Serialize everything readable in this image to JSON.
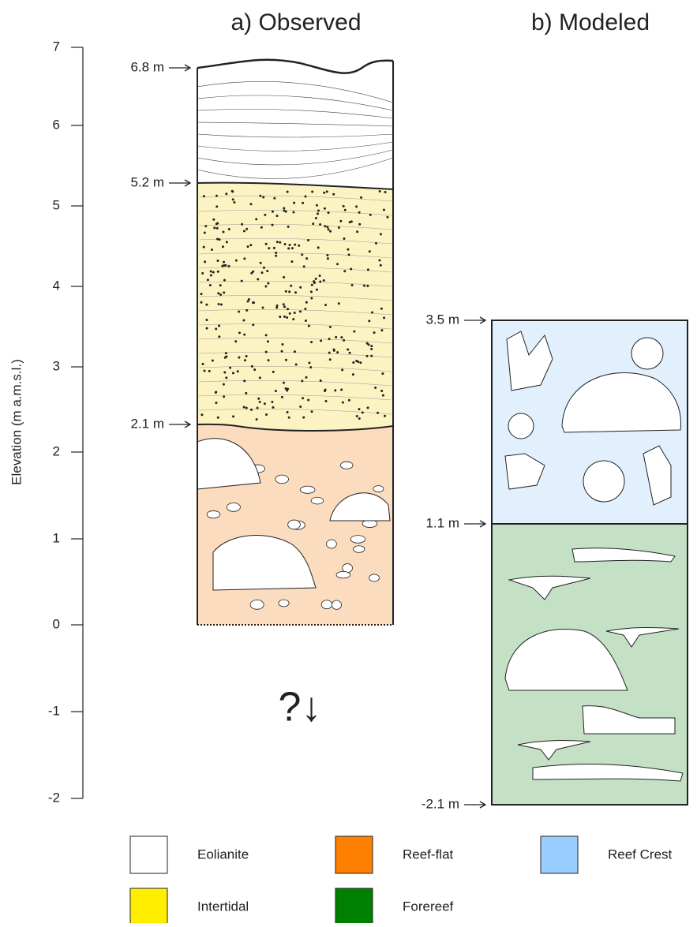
{
  "titles": {
    "observed": "a) Observed",
    "modeled": "b) Modeled"
  },
  "axis": {
    "label": "Elevation (m a.m.s.l.)",
    "ticks": [
      "7",
      "6",
      "5",
      "4",
      "3",
      "2",
      "1",
      "0",
      "-1",
      "-2"
    ]
  },
  "observed": {
    "boundaries": [
      "6.8 m",
      "5.2 m",
      "2.1 m"
    ],
    "unknown": "?↓"
  },
  "modeled": {
    "boundaries": [
      "3.5 m",
      "1.1 m",
      "-2.1 m"
    ]
  },
  "legend": [
    {
      "label": "Eolianite",
      "color": "#ffffff"
    },
    {
      "label": "Reef-flat",
      "color": "#ff8000"
    },
    {
      "label": "Reef Crest",
      "color": "#99ccff"
    },
    {
      "label": "Intertidal",
      "color": "#ffee00"
    },
    {
      "label": "Forereef",
      "color": "#008000"
    }
  ]
}
